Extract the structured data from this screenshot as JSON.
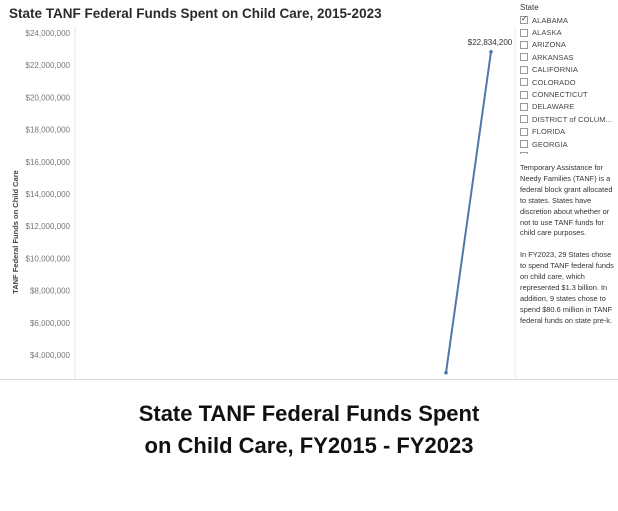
{
  "chart_data": {
    "type": "line",
    "title": "State TANF Federal Funds Spent on Child Care, 2015-2023",
    "ylabel": "TANF Federal Funds on Child Care",
    "xlabel": "",
    "y_ticks": [
      "$4,000,000",
      "$6,000,000",
      "$8,000,000",
      "$10,000,000",
      "$12,000,000",
      "$14,000,000",
      "$16,000,000",
      "$18,000,000",
      "$20,000,000",
      "$22,000,000",
      "$24,000,000"
    ],
    "y_visible_range": [
      2900000,
      24300000
    ],
    "grid": false,
    "series": [
      {
        "name": "ALABAMA",
        "color": "#4e79a7",
        "points": [
          {
            "y": 2900000
          },
          {
            "y": 22834200,
            "label": "$22,834,200"
          }
        ]
      }
    ]
  },
  "filter": {
    "title": "State",
    "states": [
      {
        "name": "ALABAMA",
        "checked": true
      },
      {
        "name": "ALASKA",
        "checked": false
      },
      {
        "name": "ARIZONA",
        "checked": false
      },
      {
        "name": "ARKANSAS",
        "checked": false
      },
      {
        "name": "CALIFORNIA",
        "checked": false
      },
      {
        "name": "COLORADO",
        "checked": false
      },
      {
        "name": "CONNECTICUT",
        "checked": false
      },
      {
        "name": "DELAWARE",
        "checked": false
      },
      {
        "name": "DISTRICT of COLUM...",
        "checked": false
      },
      {
        "name": "FLORIDA",
        "checked": false
      },
      {
        "name": "GEORGIA",
        "checked": false
      },
      {
        "name": "HAWAII",
        "checked": false
      }
    ]
  },
  "info": {
    "paragraph1": "Temporary Assistance for Needy Families (TANF) is a federal block grant allocated to states. States have discretion about whether or not to use TANF funds for child care purposes.",
    "paragraph2": "In FY2023, 29 States chose to spend TANF federal funds on child care, which represented $1.3 billion. In addition, 9 states chose to spend $80.6 million in TANF federal funds on state pre-k."
  },
  "caption": {
    "line1": "State TANF Federal Funds Spent",
    "line2": "on Child Care, FY2015 - FY2023"
  }
}
